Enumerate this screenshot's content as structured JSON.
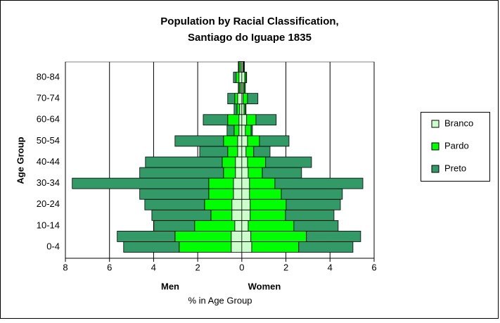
{
  "chart_data": {
    "type": "pyramid",
    "title": [
      "Population by Racial Classification,",
      "Santiago do Iguape 1835"
    ],
    "y_label": "Age Group",
    "x_label": "% in Age Group",
    "side_labels": [
      "Men",
      "Women"
    ],
    "categories": [
      "0-4",
      null,
      "10-14",
      null,
      "20-24",
      null,
      "30-34",
      null,
      "40-44",
      null,
      "50-54",
      null,
      "60-64",
      null,
      "70-74",
      null,
      "80-84",
      null
    ],
    "xlim": [
      -8,
      6
    ],
    "xticks": [
      {
        "value": -8,
        "label": "8"
      },
      {
        "value": -6,
        "label": "6"
      },
      {
        "value": -4,
        "label": "4"
      },
      {
        "value": -2,
        "label": "2"
      },
      0,
      2,
      4,
      6
    ],
    "grid": true,
    "legend": "right",
    "series": [
      {
        "name": "Branco",
        "color": "#ccffcc",
        "men": [
          -0.48,
          -0.48,
          -0.32,
          -0.45,
          -0.45,
          -0.38,
          -0.38,
          -0.29,
          -0.29,
          -0.19,
          -0.19,
          -0.13,
          -0.13,
          -0.1,
          -0.19,
          -0.06,
          -0.13,
          -0.06
        ],
        "women": [
          0.45,
          0.41,
          0.29,
          0.38,
          0.38,
          0.35,
          0.35,
          0.29,
          0.26,
          0.19,
          0.26,
          0.16,
          0.22,
          0.1,
          0.06,
          0.06,
          0.13,
          0.06
        ]
      },
      {
        "name": "Pardo",
        "color": "#00ff00",
        "men": [
          -2.36,
          -2.55,
          -1.82,
          -0.95,
          -1.24,
          -1.12,
          -1.12,
          -0.54,
          -0.6,
          -0.45,
          -0.64,
          -0.22,
          -0.51,
          -0.12,
          -0.13,
          -0.06,
          -0.13,
          -0.07
        ],
        "women": [
          2.13,
          2.52,
          2.07,
          1.6,
          1.63,
          1.44,
          1.15,
          0.64,
          0.82,
          0.35,
          0.54,
          0.26,
          0.42,
          0.06,
          0.2,
          0.06,
          0.06,
          0.03
        ]
      },
      {
        "name": "Preto",
        "color": "#339966",
        "men": [
          -2.52,
          -2.62,
          -1.85,
          -2.68,
          -2.71,
          -3.13,
          -6.19,
          -3.8,
          -3.48,
          -1.27,
          -2.2,
          -0.32,
          -1.11,
          -0.13,
          -0.32,
          -0.04,
          -0.12,
          -0.03
        ],
        "women": [
          2.46,
          2.46,
          2.01,
          2.2,
          2.46,
          2.77,
          3.99,
          1.78,
          2.08,
          0.74,
          1.34,
          0.06,
          0.92,
          0.03,
          0.47,
          0.04,
          0.03,
          0.03
        ]
      }
    ]
  }
}
